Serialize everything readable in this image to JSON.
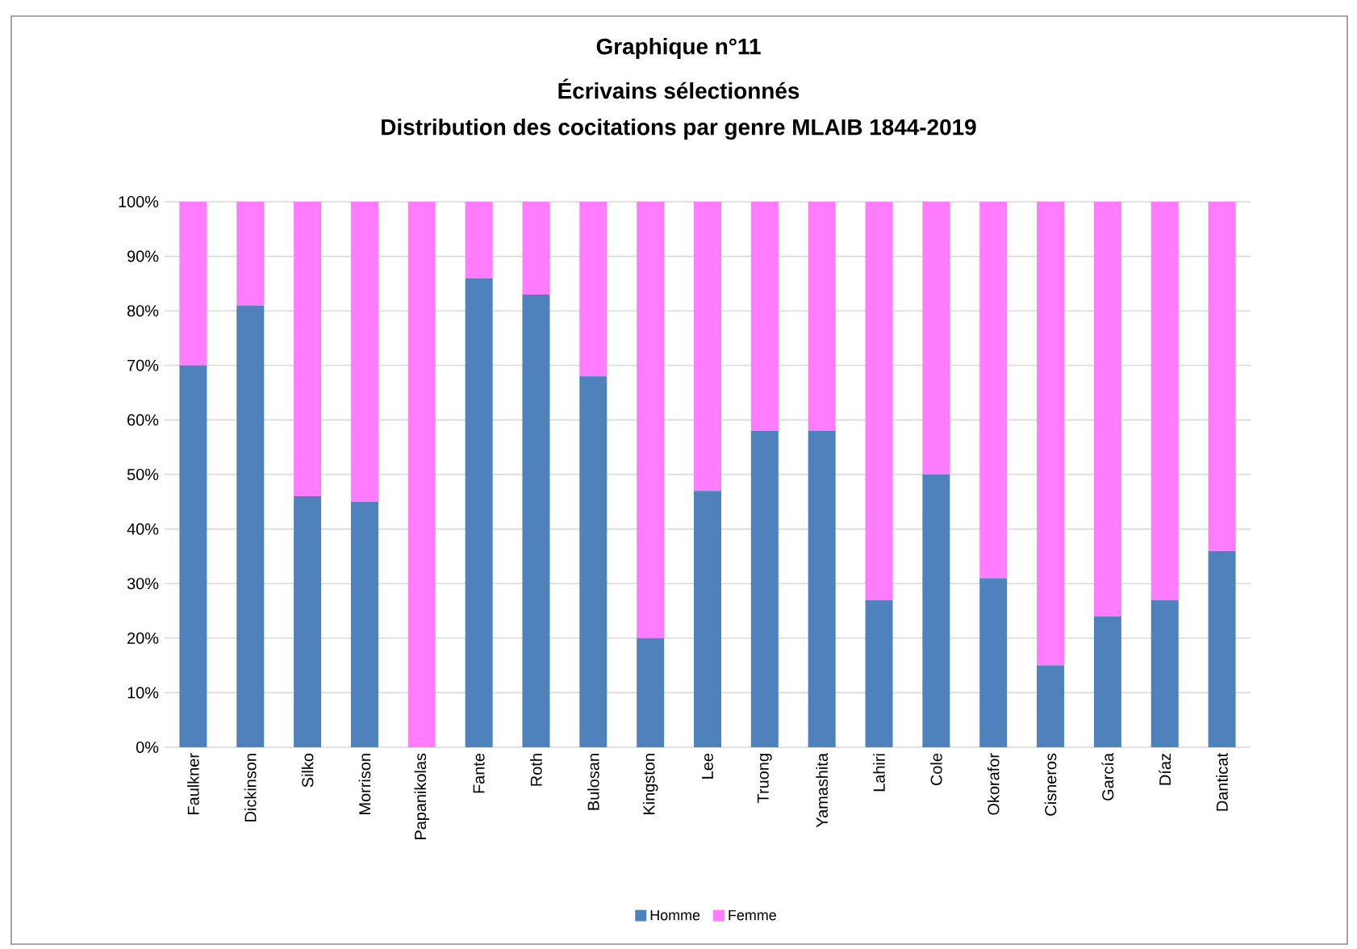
{
  "chart_data": {
    "type": "bar",
    "title": "Graphique n°11",
    "subtitle": "Écrivains sélectionnés",
    "annotations": [
      "Distribution des cocitations par genre MLAIB 1844-2019"
    ],
    "categories": [
      "Faulkner",
      "Dickinson",
      "Silko",
      "Morrison",
      "Papanikolas",
      "Fante",
      "Roth",
      "Bulosan",
      "Kingston",
      "Lee",
      "Truong",
      "Yamashita",
      "Lahiri",
      "Cole",
      "Okorafor",
      "Cisneros",
      "García",
      "Díaz",
      "Danticat"
    ],
    "series": [
      {
        "name": "Homme",
        "color": "#4f81bd",
        "values": [
          70,
          81,
          46,
          45,
          0,
          86,
          83,
          68,
          20,
          47,
          58,
          58,
          27,
          50,
          31,
          15,
          24,
          27,
          36
        ]
      },
      {
        "name": "Femme",
        "color": "#ff7cff",
        "values": [
          30,
          19,
          54,
          55,
          100,
          14,
          17,
          32,
          80,
          53,
          42,
          42,
          73,
          50,
          69,
          85,
          76,
          73,
          64
        ]
      }
    ],
    "stacked": true,
    "ylim": [
      0,
      100
    ],
    "yticks": [
      {
        "value": 0,
        "label": "0%"
      },
      {
        "value": 10,
        "label": "10%"
      },
      {
        "value": 20,
        "label": "20%"
      },
      {
        "value": 30,
        "label": "30%"
      },
      {
        "value": 40,
        "label": "40%"
      },
      {
        "value": 50,
        "label": "50%"
      },
      {
        "value": 60,
        "label": "60%"
      },
      {
        "value": 70,
        "label": "70%"
      },
      {
        "value": 80,
        "label": "80%"
      },
      {
        "value": 90,
        "label": "90%"
      },
      {
        "value": 100,
        "label": "100%"
      }
    ],
    "grid": "y",
    "legend": "bottom"
  }
}
